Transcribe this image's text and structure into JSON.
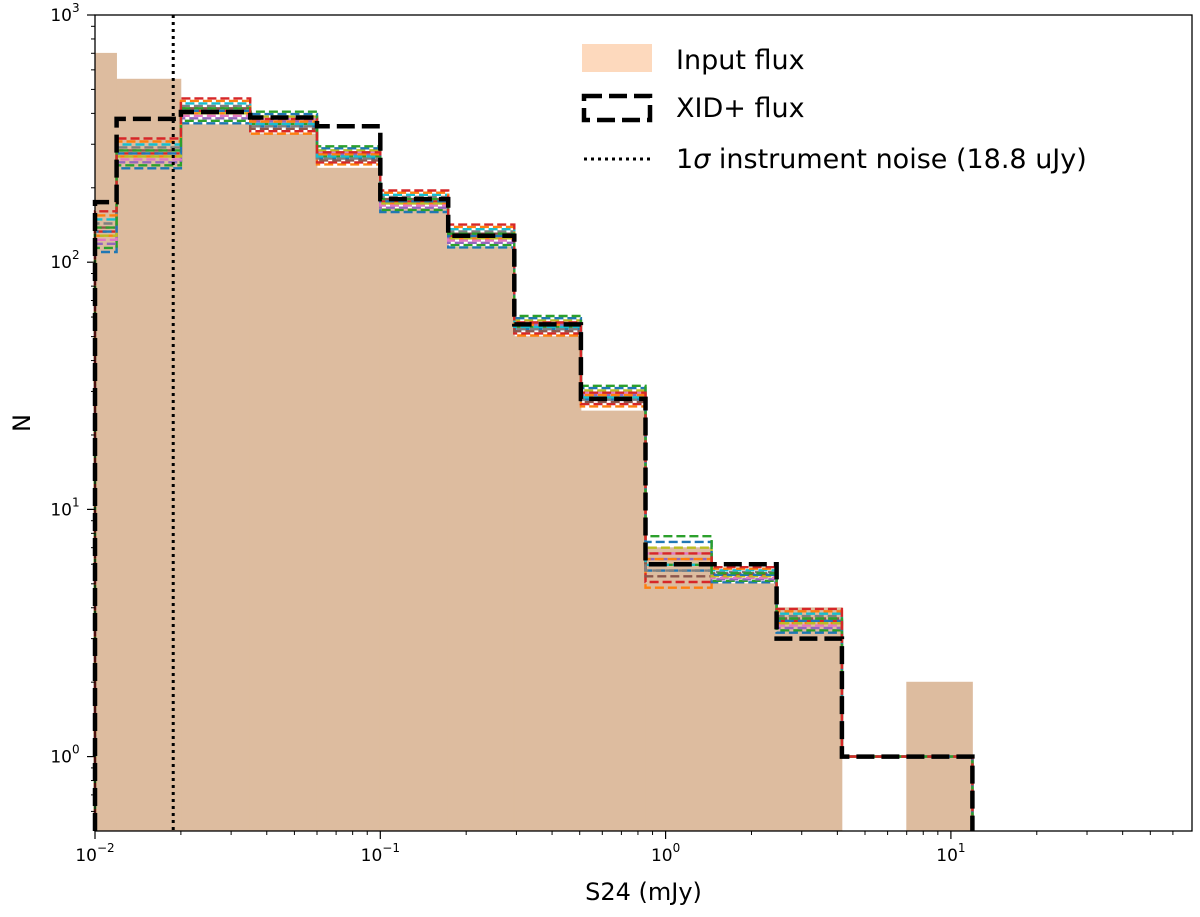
{
  "chart_data": {
    "type": "histogram",
    "title": "",
    "xlabel": "S24 (mJy)",
    "ylabel": "N",
    "xscale": "log",
    "yscale": "log",
    "xlim": [
      0.01,
      70
    ],
    "ylim": [
      0.5,
      1000
    ],
    "x_ticks": [
      {
        "base": "10",
        "exp": "−2",
        "value": 0.01
      },
      {
        "base": "10",
        "exp": "−1",
        "value": 0.1
      },
      {
        "base": "10",
        "exp": "0",
        "value": 1
      },
      {
        "base": "10",
        "exp": "1",
        "value": 10
      }
    ],
    "y_ticks": [
      {
        "base": "10",
        "exp": "0",
        "value": 1
      },
      {
        "base": "10",
        "exp": "1",
        "value": 10
      },
      {
        "base": "10",
        "exp": "2",
        "value": 100
      },
      {
        "base": "10",
        "exp": "3",
        "value": 1000
      }
    ],
    "grid": false,
    "legend_position": "top-right",
    "input_flux": {
      "label": "Input flux",
      "color": "#ddbc9f",
      "bins": [
        {
          "x0": 0.01,
          "x1": 0.0119,
          "n": 700
        },
        {
          "x0": 0.0119,
          "x1": 0.02,
          "n": 550
        },
        {
          "x0": 0.02,
          "x1": 0.035,
          "n": 360
        },
        {
          "x0": 0.035,
          "x1": 0.06,
          "n": 330
        },
        {
          "x0": 0.06,
          "x1": 0.1,
          "n": 240
        },
        {
          "x0": 0.1,
          "x1": 0.173,
          "n": 165
        },
        {
          "x0": 0.173,
          "x1": 0.295,
          "n": 115
        },
        {
          "x0": 0.295,
          "x1": 0.505,
          "n": 50
        },
        {
          "x0": 0.505,
          "x1": 0.85,
          "n": 25
        },
        {
          "x0": 0.85,
          "x1": 1.45,
          "n": 7
        },
        {
          "x0": 1.45,
          "x1": 2.45,
          "n": 5
        },
        {
          "x0": 2.45,
          "x1": 4.15,
          "n": 4
        },
        {
          "x0": 7.0,
          "x1": 11.9,
          "n": 2
        }
      ]
    },
    "xid_flux": {
      "label": "XID+ flux",
      "color": "#000000",
      "edges": [
        0.01,
        0.0119,
        0.02,
        0.035,
        0.06,
        0.1,
        0.173,
        0.295,
        0.505,
        0.85,
        1.45,
        2.45,
        4.15,
        7.0,
        11.9
      ],
      "n": [
        175,
        380,
        405,
        385,
        355,
        180,
        128,
        56,
        28,
        6,
        6,
        3,
        1,
        1
      ]
    },
    "posterior_samples": {
      "colors": [
        "#1f77b4",
        "#ff7f0e",
        "#2ca02c",
        "#d62728",
        "#9467bd",
        "#8c564b",
        "#e377c2",
        "#7f7f7f",
        "#bcbd22",
        "#17becf"
      ],
      "edges": [
        0.01,
        0.0119,
        0.02,
        0.035,
        0.06,
        0.1,
        0.173,
        0.295,
        0.505,
        0.85,
        1.45,
        2.45,
        4.15,
        7.0,
        11.9
      ],
      "low": [
        110,
        230,
        340,
        320,
        235,
        158,
        110,
        50,
        25,
        4,
        5,
        3,
        1,
        1
      ],
      "high": [
        180,
        330,
        460,
        430,
        300,
        205,
        145,
        65,
        33,
        8,
        6,
        4,
        1,
        1
      ]
    },
    "noise_line": {
      "label": "1σ instrument noise (18.8 uJy)",
      "label_prefix": "1",
      "label_sigma": "σ",
      "label_rest": " instrument noise (18.8 uJy)",
      "x": 0.0188,
      "color": "#000000"
    }
  }
}
